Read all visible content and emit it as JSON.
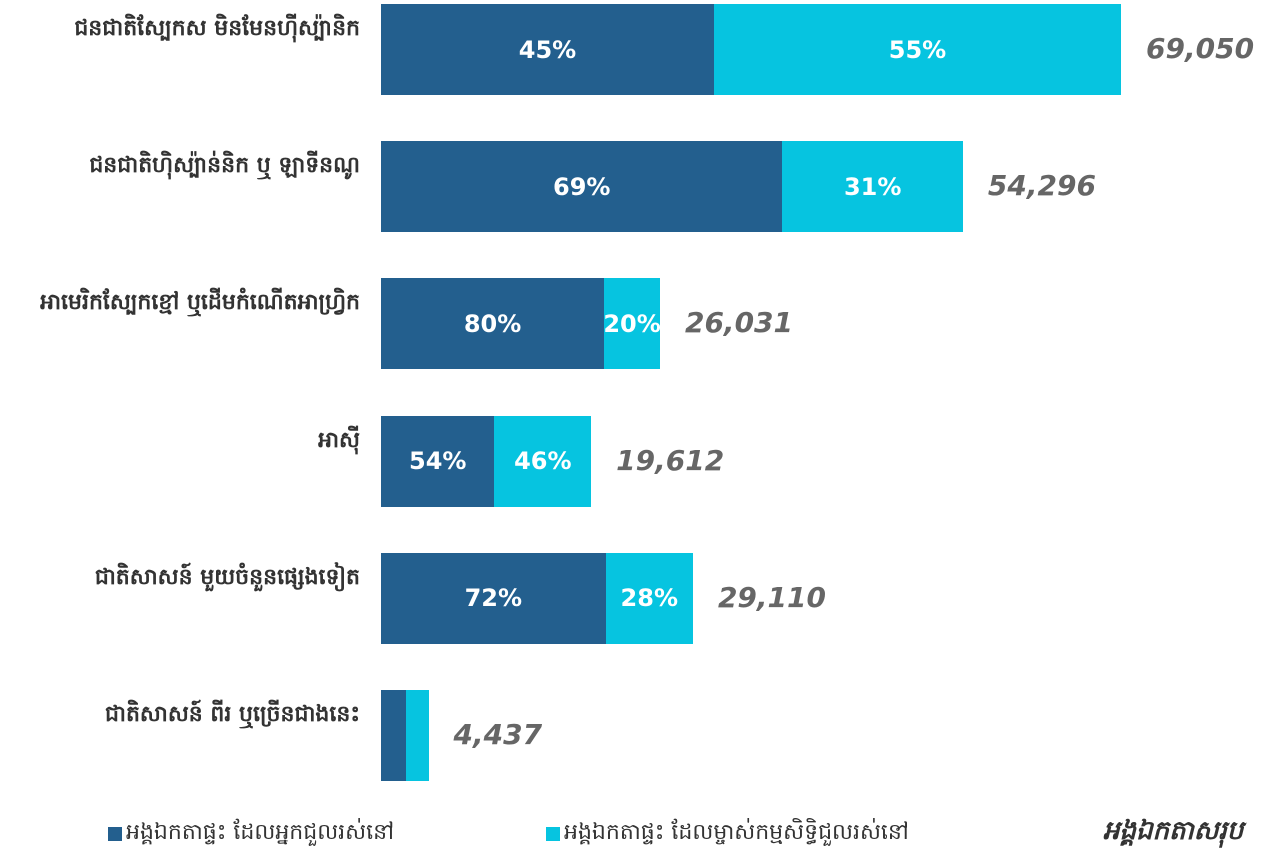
{
  "chart_data": {
    "type": "stacked-bar-horizontal",
    "categories": [
      "ជនជាតិស្បែកស មិនមែនហ៊ីស្ប៉ានិក",
      "ជនជាតិហ៊ិស្ប៉ាន់និក ឬ ឡាទីនណូ",
      "អាមេរិកស្បែកខ្មៅ ឬដើមកំណើតអាហ្វ្រិក",
      "អាស៊ី",
      "ជាតិសាសន៍ មួយចំនួនផ្សេងទៀត",
      "ជាតិសាសន៍ ពីរ ឬច្រើនជាងនេះ"
    ],
    "series": [
      {
        "name": "អង្គឯកតាផ្ទះ ដែលអ្នកជួលរស់នៅ",
        "color": "#235f8e",
        "values": [
          45,
          69,
          80,
          54,
          72,
          53
        ],
        "value_labels": [
          "45%",
          "69%",
          "80%",
          "54%",
          "72%",
          null
        ]
      },
      {
        "name": "អង្គឯកតាផ្ទះ ដែលម្ចាស់កម្មសិទ្ធិជួលរស់នៅ",
        "color": "#06c4e0",
        "values": [
          55,
          31,
          20,
          46,
          28,
          47
        ],
        "value_labels": [
          "55%",
          "31%",
          "20%",
          "46%",
          "28%",
          null
        ]
      }
    ],
    "totals": {
      "name": "អង្គឯកតាសរុប",
      "values": [
        69050,
        54296,
        26031,
        19612,
        29110,
        4437
      ],
      "value_labels": [
        "69,050",
        "54,296",
        "26,031",
        "19,612",
        "29,110",
        "4,437"
      ]
    }
  }
}
